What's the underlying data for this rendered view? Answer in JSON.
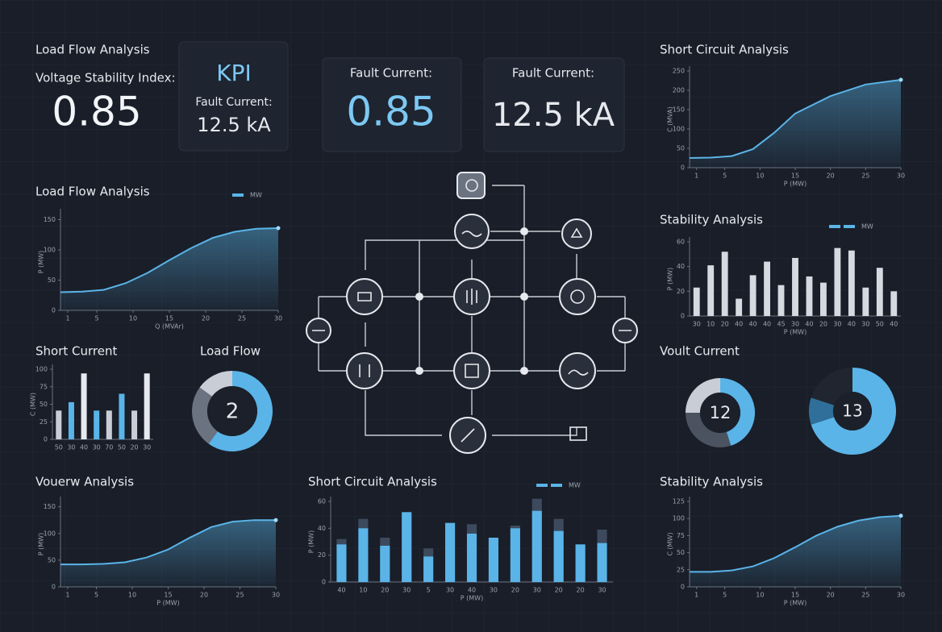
{
  "kpis": {
    "load_flow": {
      "title": "Load Flow Analysis",
      "label": "Voltage Stability Index:",
      "value": "0.85"
    },
    "kpi_box": {
      "title": "KPI",
      "label": "Fault Current:",
      "value": "12.5 kA"
    },
    "fault_box_1": {
      "label": "Fault Current:",
      "value": "0.85"
    },
    "fault_box_2": {
      "label": "Fault Current:",
      "value": "12.5 kA"
    }
  },
  "chart_data": [
    {
      "type": "area",
      "title": "Short Circuit Analysis",
      "ylabel": "C (MVA)",
      "xlabel": "P (MW)",
      "color": "#5ab4e8",
      "x": [
        0,
        3,
        6,
        9,
        12,
        15,
        20,
        25,
        30
      ],
      "values": [
        25,
        26,
        30,
        48,
        90,
        140,
        185,
        215,
        227
      ],
      "xlim": [
        0,
        30
      ],
      "xticks": [
        1,
        5,
        10,
        15,
        20,
        25,
        30
      ],
      "ylim": [
        0,
        250
      ],
      "yticks": [
        0,
        50,
        100,
        150,
        200,
        250
      ]
    },
    {
      "type": "area",
      "title": "Load Flow Analysis",
      "legend": "MW",
      "ylabel": "P (MW)",
      "xlabel": "Q (MVAr)",
      "color": "#5ab4e8",
      "x": [
        0,
        3,
        6,
        9,
        12,
        15,
        18,
        21,
        24,
        27,
        30
      ],
      "values": [
        30,
        31,
        34,
        45,
        62,
        83,
        103,
        120,
        130,
        135,
        136
      ],
      "xlim": [
        0,
        30
      ],
      "xticks": [
        1,
        5,
        10,
        15,
        20,
        25,
        30
      ],
      "ylim": [
        0,
        160
      ],
      "yticks": [
        0,
        50,
        100,
        150
      ]
    },
    {
      "type": "bar",
      "title": "Stability Analysis",
      "legend": "MW",
      "ylabel": "P (MW)",
      "xlabel": "P (MW)",
      "color": "#d5d9e0",
      "categories": [
        "30",
        "10",
        "20",
        "40",
        "40",
        "40",
        "45",
        "30",
        "40",
        "20",
        "30",
        "40",
        "30",
        "50",
        "40"
      ],
      "values": [
        23,
        41,
        52,
        14,
        33,
        44,
        25,
        47,
        32,
        27,
        55,
        53,
        23,
        39,
        20
      ],
      "ylim": [
        0,
        60
      ],
      "yticks": [
        0,
        20,
        40,
        60
      ]
    },
    {
      "type": "bar",
      "title": "Short Current",
      "ylabel": "C (MW)",
      "categories": [
        "50",
        "30",
        "40",
        "30",
        "70",
        "50",
        "20",
        "30"
      ],
      "values": [
        41,
        53,
        94,
        41,
        41,
        65,
        41,
        94
      ],
      "colors": [
        "#c9ced6",
        "#5ab4e8",
        "#e6e9ee",
        "#5ab4e8",
        "#c9ced6",
        "#5ab4e8",
        "#c9ced6",
        "#e6e9ee"
      ],
      "ylim": [
        0,
        100
      ],
      "yticks": [
        0,
        25,
        50,
        75,
        100
      ]
    },
    {
      "type": "donut",
      "title": "Load Flow",
      "center_label": "2",
      "values": [
        60,
        25,
        15
      ],
      "colors": [
        "#5ab4e8",
        "#6b7280",
        "#c9ced6"
      ]
    },
    {
      "type": "donut",
      "title": "Voult Current",
      "center_label": "12",
      "values": [
        45,
        30,
        25
      ],
      "colors": [
        "#5ab4e8",
        "#4b5260",
        "#c9ced6"
      ]
    },
    {
      "type": "donut",
      "center_label": "13",
      "values": [
        70,
        10,
        20
      ],
      "colors": [
        "#5ab4e8",
        "#2f6f99",
        "#20252f"
      ]
    },
    {
      "type": "area",
      "title": "Vouerw Analysis",
      "ylabel": "P (MW)",
      "xlabel": "P (MW)",
      "color": "#5ab4e8",
      "x": [
        0,
        3,
        6,
        9,
        12,
        15,
        18,
        21,
        24,
        27,
        30
      ],
      "values": [
        42,
        42,
        43,
        46,
        55,
        70,
        92,
        112,
        122,
        125,
        125
      ],
      "xlim": [
        0,
        30
      ],
      "xticks": [
        1,
        5,
        10,
        15,
        20,
        25,
        30
      ],
      "ylim": [
        0,
        160
      ],
      "yticks": [
        0,
        50,
        100,
        150
      ]
    },
    {
      "type": "bar",
      "title": "Short Circuit Analysis",
      "legend": "MW",
      "ylabel": "P (MW)",
      "xlabel": "P (MW)",
      "categories": [
        "40",
        "10",
        "20",
        "30",
        "5",
        "30",
        "40",
        "30",
        "20",
        "30",
        "20",
        "20",
        "30"
      ],
      "series": [
        {
          "color": "#3d4a5e",
          "values": [
            32,
            47,
            33,
            52,
            25,
            44,
            43,
            33,
            42,
            62,
            47,
            28,
            39
          ]
        },
        {
          "color": "#5ab4e8",
          "values": [
            28,
            40,
            27,
            52,
            19,
            44,
            36,
            33,
            40,
            53,
            38,
            28,
            29
          ]
        }
      ],
      "ylim": [
        0,
        60
      ],
      "yticks": [
        0,
        20,
        40,
        60
      ]
    },
    {
      "type": "area",
      "title": "Stability Analysis",
      "ylabel": "C (MW)",
      "xlabel": "P (MW)",
      "color": "#5ab4e8",
      "x": [
        0,
        3,
        6,
        9,
        12,
        15,
        18,
        21,
        24,
        27,
        30
      ],
      "values": [
        22,
        22,
        24,
        30,
        42,
        58,
        75,
        88,
        97,
        102,
        104
      ],
      "xlim": [
        0,
        30
      ],
      "xticks": [
        1,
        5,
        10,
        15,
        20,
        25,
        30
      ],
      "ylim": [
        0,
        125
      ],
      "yticks": [
        0,
        25,
        50,
        75,
        100,
        125
      ]
    }
  ]
}
